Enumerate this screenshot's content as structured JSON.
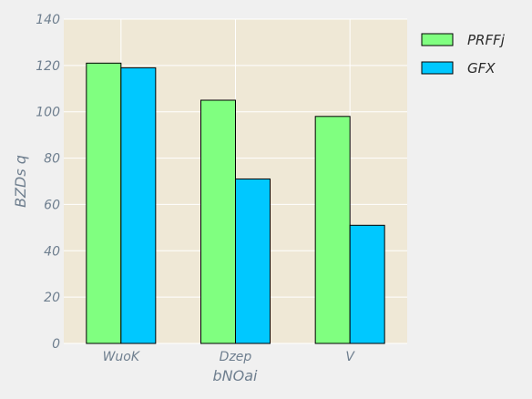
{
  "chart_data": {
    "type": "bar",
    "title": "",
    "xlabel": "bNOai",
    "ylabel": "BZDs q",
    "categories": [
      "WuoK",
      "Dzep",
      "V"
    ],
    "series": [
      {
        "name": "PRFFj",
        "values": [
          121,
          105,
          98
        ],
        "color": "#80ff80"
      },
      {
        "name": "GFX",
        "values": [
          119,
          71,
          51
        ],
        "color": "#00c8ff"
      }
    ],
    "ylim": [
      0,
      140
    ],
    "yticks": [
      0,
      20,
      40,
      60,
      80,
      100,
      120,
      140
    ],
    "grid": true,
    "legend_position": "upper-right-outside"
  },
  "colors": {
    "plot_background": "#efe8d6",
    "page_background": "#f0f0f0",
    "grid": "#ffffff",
    "tick_text": "#6f7f8f"
  }
}
